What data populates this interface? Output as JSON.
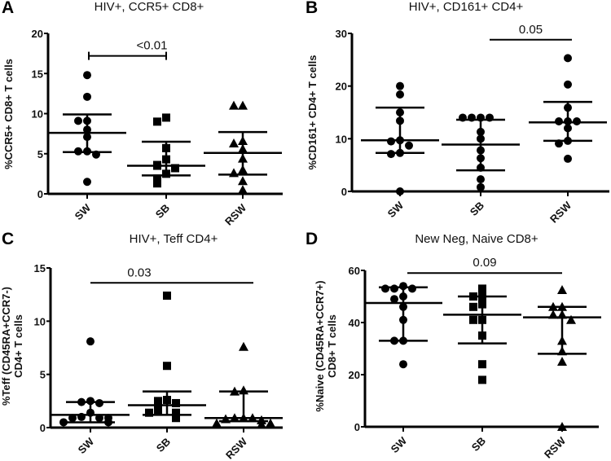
{
  "chart_data": [
    {
      "type": "scatter",
      "panel_letter": "A",
      "title": "HIV+, CCR5+ CD8+",
      "ylabel": [
        "%CCR5+ CD8+ T cells"
      ],
      "xlabel": "",
      "ylim": [
        0,
        20
      ],
      "yticks": [
        0,
        5,
        10,
        15,
        20
      ],
      "categories": [
        "SW",
        "SB",
        "RSW"
      ],
      "markers": [
        "circle",
        "square",
        "triangle"
      ],
      "series": [
        {
          "name": "SW",
          "values": [
            14.8,
            12.1,
            9.1,
            9.1,
            8.0,
            7.1,
            5.3,
            5.3,
            4.9,
            1.5
          ],
          "median": 7.6,
          "q1": 5.2,
          "q3": 9.9
        },
        {
          "name": "SB",
          "values": [
            9.5,
            9.0,
            5.7,
            4.3,
            3.6,
            3.5,
            3.2,
            2.5,
            1.9,
            1.3
          ],
          "median": 3.5,
          "q1": 2.3,
          "q3": 6.5
        },
        {
          "name": "RSW",
          "values": [
            11.0,
            11.0,
            6.6,
            6.3,
            5.6,
            4.4,
            3.0,
            2.6,
            1.6,
            0.5
          ],
          "median": 5.1,
          "q1": 2.4,
          "q3": 7.7
        }
      ],
      "comparison": {
        "from": "SW",
        "to": "SB",
        "y": 17.2,
        "label": "<0.01",
        "bracket": true
      }
    },
    {
      "type": "scatter",
      "panel_letter": "B",
      "title": "HIV+, CD161+ CD4+",
      "ylabel": [
        "%CD161+ CD4+ T cells"
      ],
      "xlabel": "",
      "ylim": [
        0,
        30
      ],
      "yticks": [
        0,
        10,
        20,
        30
      ],
      "categories": [
        "SW",
        "SB",
        "RSW"
      ],
      "markers": [
        "circle",
        "circle",
        "circle"
      ],
      "series": [
        {
          "name": "SW",
          "values": [
            20.0,
            18.4,
            15.0,
            13.4,
            9.7,
            9.5,
            8.7,
            7.3,
            7.1,
            0.0
          ],
          "median": 9.7,
          "q1": 7.3,
          "q3": 15.9
        },
        {
          "name": "SB",
          "values": [
            14.0,
            14.0,
            14.0,
            14.0,
            11.3,
            10.0,
            7.8,
            6.3,
            4.5,
            2.3,
            0.8
          ],
          "median": 8.9,
          "q1": 4.0,
          "q3": 13.6
        },
        {
          "name": "RSW",
          "values": [
            25.3,
            20.3,
            15.9,
            13.3,
            13.3,
            13.3,
            12.0,
            9.6,
            9.1,
            6.2
          ],
          "median": 13.1,
          "q1": 9.6,
          "q3": 17.0
        }
      ],
      "comparison": {
        "from": "SB",
        "to": "RSW",
        "y": 28.8,
        "label": "0.05",
        "bracket": false
      }
    },
    {
      "type": "scatter",
      "panel_letter": "C",
      "title": "HIV+, Teff CD4+",
      "ylabel": [
        "%Teff (CD45RA+CCR7-)",
        "CD4+ T cells"
      ],
      "xlabel": "",
      "ylim": [
        0,
        15
      ],
      "yticks": [
        0,
        5,
        10,
        15
      ],
      "categories": [
        "SW",
        "SB",
        "RSW"
      ],
      "markers": [
        "circle",
        "square",
        "triangle"
      ],
      "series": [
        {
          "name": "SW",
          "values": [
            8.1,
            2.5,
            2.4,
            2.3,
            1.4,
            1.0,
            0.9,
            0.9,
            0.9,
            0.5,
            0.5
          ],
          "median": 1.2,
          "q1": 0.5,
          "q3": 2.4
        },
        {
          "name": "SB",
          "values": [
            12.4,
            5.8,
            2.6,
            2.5,
            2.3,
            1.9,
            1.6,
            1.4,
            1.4,
            0.9
          ],
          "median": 2.1,
          "q1": 1.2,
          "q3": 3.4
        },
        {
          "name": "RSW",
          "values": [
            7.6,
            3.5,
            3.4,
            0.9,
            0.9,
            0.9,
            0.8,
            0.7,
            0.4,
            0.4,
            0.3
          ],
          "median": 0.9,
          "q1": 0.6,
          "q3": 3.4
        }
      ],
      "comparison": {
        "from": "SW",
        "to": "RSW",
        "y": 13.6,
        "label": "0.03",
        "bracket": false
      }
    },
    {
      "type": "scatter",
      "panel_letter": "D",
      "title": "New Neg, Naive CD8+",
      "ylabel": [
        "%Naive (CD45RA+CCR7+)",
        "CD8+ T cells"
      ],
      "xlabel": "",
      "ylim": [
        0,
        60
      ],
      "yticks": [
        0,
        20,
        40,
        60
      ],
      "categories": [
        "SW",
        "SB",
        "RSW"
      ],
      "markers": [
        "circle",
        "square",
        "triangle"
      ],
      "series": [
        {
          "name": "SW",
          "values": [
            54,
            53,
            53,
            53,
            50,
            49,
            46,
            41,
            33,
            33,
            24
          ],
          "median": 47.5,
          "q1": 33,
          "q3": 53.5
        },
        {
          "name": "SB",
          "values": [
            53,
            50,
            50,
            47,
            46,
            41,
            41,
            35,
            24,
            18
          ],
          "median": 43,
          "q1": 32,
          "q3": 50
        },
        {
          "name": "RSW",
          "values": [
            52.5,
            46,
            46,
            43,
            43,
            41,
            33,
            29,
            25,
            0
          ],
          "median": 42,
          "q1": 28,
          "q3": 46
        }
      ],
      "comparison": {
        "from": "SW",
        "to": "RSW",
        "y": 59,
        "label": "0.09",
        "bracket": false
      }
    }
  ]
}
